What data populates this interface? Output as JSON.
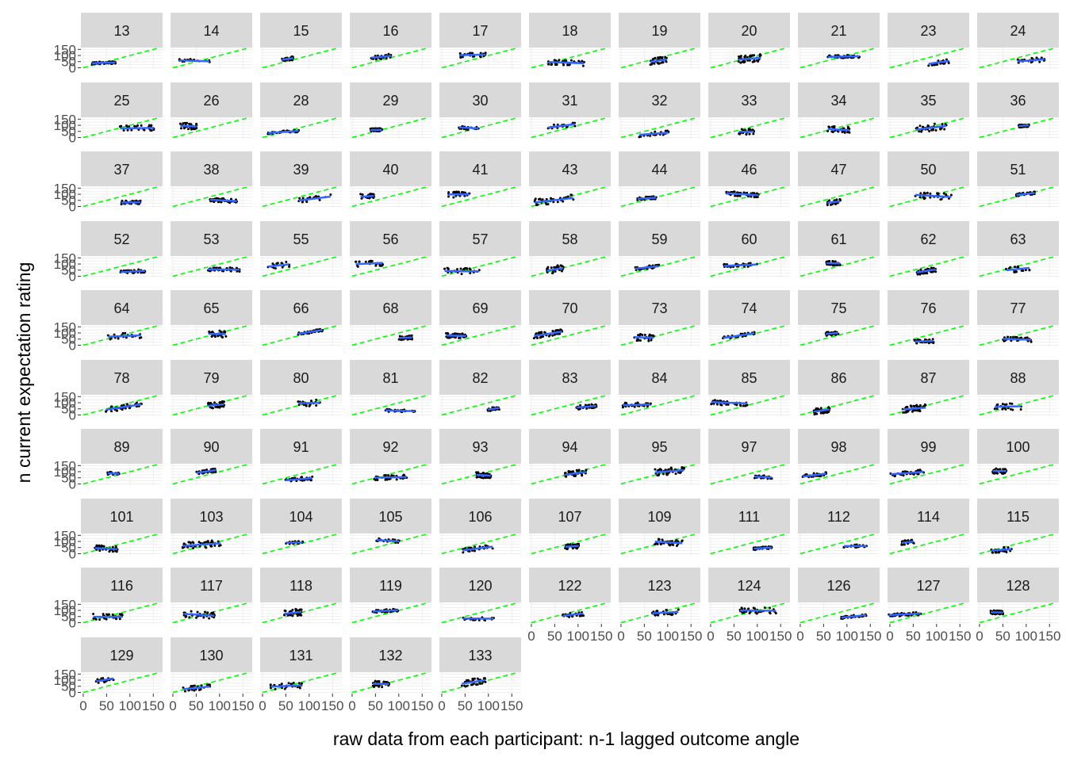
{
  "chart_data": {
    "type": "scatter",
    "facets": [
      "13",
      "14",
      "15",
      "16",
      "17",
      "18",
      "19",
      "20",
      "21",
      "23",
      "24",
      "25",
      "26",
      "28",
      "29",
      "30",
      "31",
      "32",
      "33",
      "34",
      "35",
      "36",
      "37",
      "38",
      "39",
      "40",
      "41",
      "43",
      "44",
      "46",
      "47",
      "50",
      "51",
      "52",
      "53",
      "55",
      "56",
      "57",
      "58",
      "59",
      "60",
      "61",
      "62",
      "63",
      "64",
      "65",
      "66",
      "68",
      "69",
      "70",
      "73",
      "74",
      "75",
      "76",
      "77",
      "78",
      "79",
      "80",
      "81",
      "82",
      "83",
      "84",
      "85",
      "86",
      "87",
      "88",
      "89",
      "90",
      "91",
      "92",
      "93",
      "94",
      "95",
      "97",
      "98",
      "99",
      "100",
      "101",
      "103",
      "104",
      "105",
      "106",
      "107",
      "109",
      "111",
      "112",
      "114",
      "115",
      "116",
      "117",
      "118",
      "119",
      "120",
      "122",
      "123",
      "124",
      "126",
      "127",
      "128",
      "129",
      "130",
      "131",
      "132",
      "133"
    ],
    "xlabel": "raw data from each participant: n-1 lagged outcome angle",
    "ylabel": "n current expectation rating",
    "x_ticks": [
      "0",
      "50",
      "100",
      "150"
    ],
    "y_ticks": [
      "0",
      "50",
      "100",
      "150"
    ],
    "xlim": [
      -5,
      170
    ],
    "ylim": [
      -10,
      165
    ],
    "identity_line": {
      "slope": 1,
      "intercept": 0,
      "style": "dashed",
      "color": "#00ff00"
    },
    "fit_line_color": "#3366ff",
    "point_color": "#000000",
    "grid": true,
    "strip_color": "#d9d9d9",
    "ncol": 11
  }
}
